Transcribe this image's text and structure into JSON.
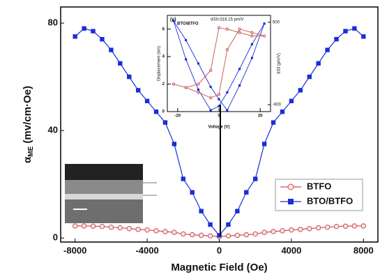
{
  "chart_data": [
    {
      "type": "line",
      "xlabel": "Magnetic Field (Oe)",
      "ylabel_parts": [
        "α",
        "ME",
        " (mv/cm·Oe)"
      ],
      "x": [
        -8000,
        -7500,
        -7000,
        -6500,
        -6000,
        -5500,
        -5000,
        -4500,
        -4000,
        -3500,
        -3000,
        -2500,
        -2000,
        -1500,
        -1000,
        -500,
        0,
        500,
        1000,
        1500,
        2000,
        2500,
        3000,
        3500,
        4000,
        4500,
        5000,
        5500,
        6000,
        6500,
        7000,
        7500,
        8000
      ],
      "series": [
        {
          "name": "BTFO",
          "color": "#c8504f",
          "marker": "circle",
          "values": [
            4.5,
            4.5,
            4.4,
            4.3,
            4,
            3.8,
            3.5,
            3.2,
            3,
            2.7,
            2.4,
            2.1,
            1.5,
            1.2,
            1,
            0.8,
            0.5,
            0.8,
            1,
            1.2,
            1.5,
            2.1,
            2.4,
            2.7,
            3,
            3.2,
            3.5,
            3.8,
            4,
            4.3,
            4.4,
            4.5,
            4.5
          ]
        },
        {
          "name": "BTO/BTFO",
          "color": "#1a2fd6",
          "marker": "square",
          "values": [
            75,
            78,
            77,
            74,
            70,
            65,
            60,
            55,
            51,
            47,
            43,
            35,
            22,
            17,
            10,
            5,
            1,
            5,
            10,
            17,
            22,
            35,
            43,
            47,
            51,
            55,
            60,
            65,
            70,
            74,
            77,
            78,
            75
          ]
        }
      ],
      "xlim": [
        -8800,
        8800
      ],
      "xticks": [
        -8000,
        -4000,
        0,
        4000,
        8000
      ],
      "ylim": [
        -1.5,
        86
      ],
      "yticks": [
        0,
        40,
        80
      ],
      "legend": "lower right"
    },
    {
      "type": "line",
      "panel": "(c)",
      "sample": "BTO/BTFO",
      "annotation": "d33=316.15 pm/V",
      "xlabel": "Voltage (V)",
      "ylabel": "Displacement (nm)",
      "y2label": "d33 (pm/V)",
      "x": [
        -22,
        -16,
        -10,
        -4,
        0,
        4,
        10,
        16,
        22,
        16,
        10,
        4,
        0,
        -4,
        -10,
        -16,
        -22
      ],
      "series": [
        {
          "color": "#1a2fd6",
          "marker": "square",
          "values": [
            6.6,
            5.2,
            3.5,
            1.8,
            0.9,
            0.1,
            1.9,
            3.9,
            6.4,
            4.9,
            3.1,
            1.4,
            0.4,
            0.1,
            1.6,
            3.8,
            6.6
          ]
        },
        {
          "color": "#c8504f",
          "marker": "circle",
          "axis": "y2",
          "values": [
            -300,
            -350,
            -420,
            -500,
            -450,
            200,
            500,
            450,
            400,
            400,
            450,
            500,
            520,
            -100,
            -300,
            -350,
            -300
          ]
        }
      ],
      "xlim": [
        -25,
        25
      ],
      "xticks": [
        -20,
        0,
        20
      ],
      "ylim": [
        0,
        7
      ],
      "yticks": [
        0,
        2,
        4,
        6
      ],
      "y2lim": [
        -700,
        700
      ],
      "y2ticks": [
        -600,
        600
      ]
    }
  ]
}
